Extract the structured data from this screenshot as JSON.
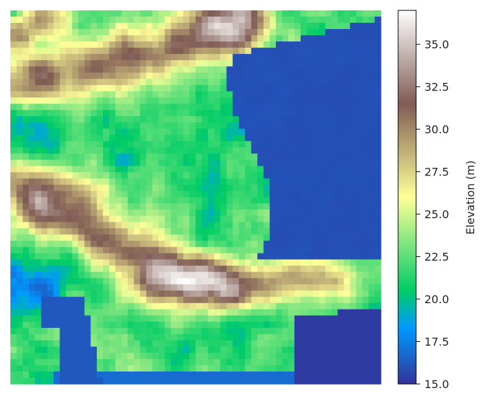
{
  "chart_data": {
    "type": "heatmap",
    "title": "",
    "xlabel": "",
    "ylabel": "",
    "colormap": "terrain",
    "grid": false,
    "colorbar": {
      "label": "Elevation (m)",
      "range": [
        15.0,
        37.0
      ],
      "ticks": [
        15.0,
        17.5,
        20.0,
        22.5,
        25.0,
        27.5,
        30.0,
        32.5,
        35.0
      ],
      "tick_labels": [
        "15.0",
        "17.5",
        "20.0",
        "22.5",
        "25.0",
        "27.5",
        "30.0",
        "32.5",
        "35.0"
      ],
      "colors": [
        "#333399",
        "#0099ff",
        "#00cc66",
        "#ffff99",
        "#805c54",
        "#ffffff"
      ]
    },
    "grid_shape": [
      60,
      60
    ],
    "features": [
      {
        "kind": "water",
        "region": "east sea",
        "value": 15.8
      },
      {
        "kind": "water",
        "region": "south-west inlet",
        "value": 16.2
      },
      {
        "kind": "water",
        "region": "south-east bay",
        "value": 15.3
      },
      {
        "kind": "ridge",
        "region": "northern ridge",
        "peak": 36.0
      },
      {
        "kind": "ridge",
        "region": "central-south ridge",
        "peak": 33.5
      },
      {
        "kind": "ridge",
        "region": "western ridge",
        "peak": 31.0
      }
    ]
  }
}
